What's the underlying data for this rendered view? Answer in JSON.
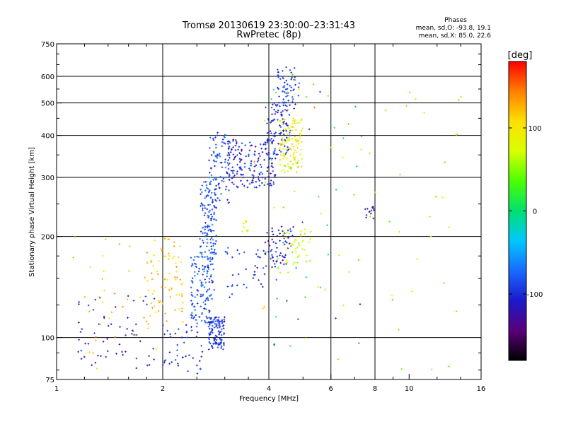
{
  "header": {
    "title_line1": "Tromsø 20130619 23:30:00–23:31:43",
    "title_line2": "RwPretec (8p)",
    "stats_title": "Phases",
    "stats_o": "mean, sd,O: -93.8, 19.1",
    "stats_x": "mean, sd,X:  85.0, 22.6"
  },
  "colorbar": {
    "unit": "[deg]",
    "ticks": [
      {
        "value": 100,
        "label": "100"
      },
      {
        "value": 0,
        "label": "0"
      },
      {
        "value": -100,
        "label": "-100"
      }
    ],
    "range": [
      -180,
      180
    ],
    "colors": [
      "#000000",
      "#5a007a",
      "#1a1acc",
      "#1a6aff",
      "#00c8ff",
      "#00e070",
      "#4cff00",
      "#d8ff00",
      "#ffe000",
      "#ff8000",
      "#ff0000"
    ]
  },
  "chart_data": {
    "type": "scatter",
    "xlabel": "Frequency [MHz]",
    "ylabel": "Stationary phase Virtual Height [km]",
    "xscale": "log",
    "yscale": "log",
    "xlim": [
      1,
      16
    ],
    "ylim": [
      75,
      750
    ],
    "x_ticks": [
      {
        "v": 1,
        "label": "1"
      },
      {
        "v": 2,
        "label": "2"
      },
      {
        "v": 4,
        "label": "4"
      },
      {
        "v": 6,
        "label": "6"
      },
      {
        "v": 8,
        "label": "8"
      },
      {
        "v": 10,
        "label": "10"
      },
      {
        "v": 16,
        "label": "16"
      }
    ],
    "x_grid": [
      2,
      4,
      6,
      8
    ],
    "y_ticks": [
      {
        "v": 75,
        "label": "75"
      },
      {
        "v": 100,
        "label": "100"
      },
      {
        "v": 200,
        "label": "200"
      },
      {
        "v": 300,
        "label": "300"
      },
      {
        "v": 400,
        "label": "400"
      },
      {
        "v": 500,
        "label": "500"
      },
      {
        "v": 600,
        "label": "600"
      },
      {
        "v": 750,
        "label": "750"
      }
    ],
    "y_grid": [
      100,
      200,
      300,
      400,
      500,
      600
    ],
    "clusters": [
      {
        "f": [
          2.7,
          3.0
        ],
        "h": [
          92,
          115
        ],
        "phase": -95,
        "n": 110
      },
      {
        "f": [
          2.4,
          2.8
        ],
        "h": [
          110,
          175
        ],
        "phase": -85,
        "n": 130
      },
      {
        "f": [
          2.55,
          2.85
        ],
        "h": [
          170,
          300
        ],
        "phase": -85,
        "n": 130
      },
      {
        "f": [
          2.7,
          3.1
        ],
        "h": [
          250,
          410
        ],
        "phase": -90,
        "n": 80
      },
      {
        "f": [
          3.0,
          4.2
        ],
        "h": [
          280,
          390
        ],
        "phase": -105,
        "n": 170
      },
      {
        "f": [
          3.9,
          4.6
        ],
        "h": [
          350,
          500
        ],
        "phase": -100,
        "n": 90
      },
      {
        "f": [
          4.2,
          4.9
        ],
        "h": [
          480,
          640
        ],
        "phase": -95,
        "n": 60
      },
      {
        "f": [
          4.3,
          5.0
        ],
        "h": [
          310,
          450
        ],
        "phase": 95,
        "n": 110
      },
      {
        "f": [
          1.8,
          2.3
        ],
        "h": [
          110,
          200
        ],
        "phase": 115,
        "n": 70
      },
      {
        "f": [
          2.0,
          2.6
        ],
        "h": [
          78,
          110
        ],
        "phase": -100,
        "n": 45
      },
      {
        "f": [
          1.15,
          1.9
        ],
        "h": [
          80,
          140
        ],
        "phase": -110,
        "n": 60
      },
      {
        "f": [
          1.1,
          2.0
        ],
        "h": [
          80,
          200
        ],
        "phase": 120,
        "n": 40
      },
      {
        "f": [
          3.9,
          4.7
        ],
        "h": [
          160,
          215
        ],
        "phase": -110,
        "n": 60
      },
      {
        "f": [
          4.4,
          5.3
        ],
        "h": [
          165,
          210
        ],
        "phase": 70,
        "n": 40
      },
      {
        "f": [
          3.0,
          3.9
        ],
        "h": [
          130,
          185
        ],
        "phase": -95,
        "n": 35
      },
      {
        "f": [
          3.3,
          3.5
        ],
        "h": [
          205,
          225
        ],
        "phase": 75,
        "n": 10
      },
      {
        "f": [
          7.5,
          8.0
        ],
        "h": [
          225,
          245
        ],
        "phase": -120,
        "n": 14
      },
      {
        "f": [
          3.6,
          7.5
        ],
        "h": [
          90,
          650
        ],
        "phase": 0,
        "n": 60
      },
      {
        "f": [
          4.0,
          15.0
        ],
        "h": [
          80,
          660
        ],
        "phase": 50,
        "n": 45
      }
    ]
  }
}
